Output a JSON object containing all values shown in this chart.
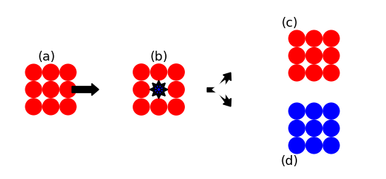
{
  "red": "#FF0000",
  "blue": "#0000FF",
  "black": "#000000",
  "white": "#FFFFFF",
  "label_a": "(a)",
  "label_b": "(b)",
  "label_c": "(c)",
  "label_d": "(d)",
  "label_fontsize": 13
}
